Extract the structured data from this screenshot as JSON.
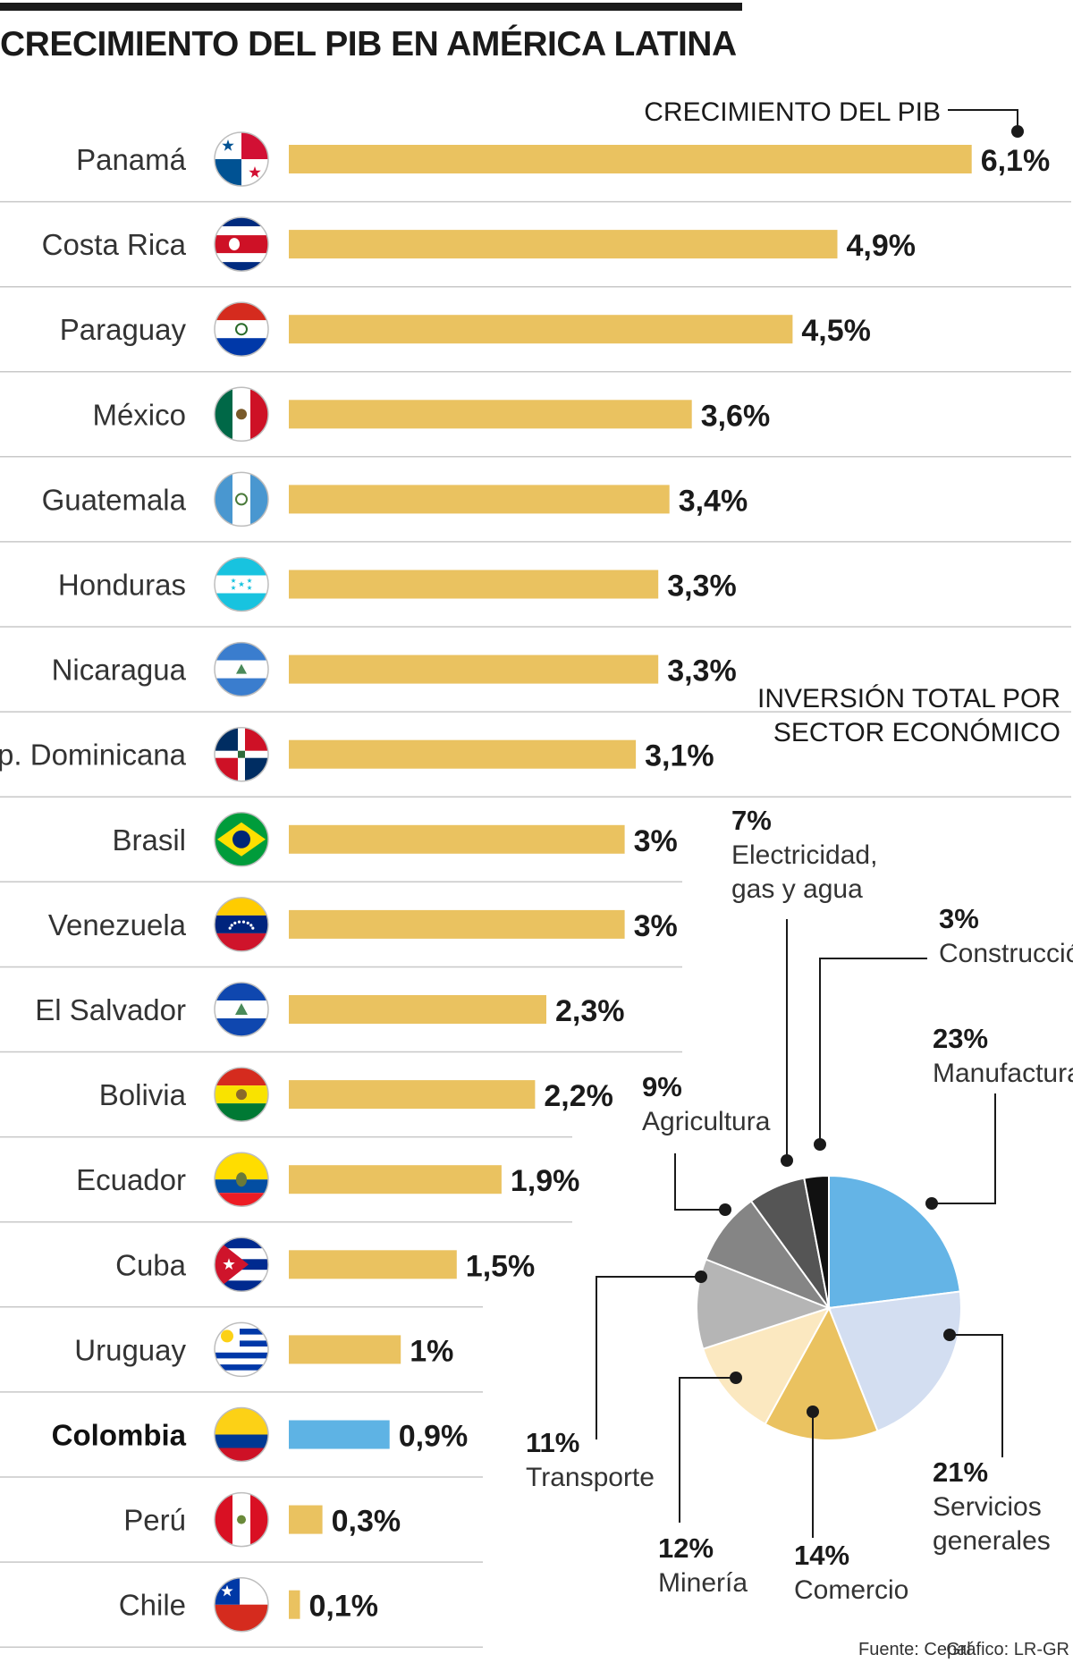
{
  "title": "CRECIMIENTO DEL PIB EN AMÉRICA LATINA",
  "legend_label": "CRECIMIENTO DEL PIB",
  "colors": {
    "bar": "#EAC260",
    "highlight": "#5EB3E4",
    "text": "#1a1a1a"
  },
  "chart_data": [
    {
      "type": "bar",
      "orientation": "horizontal",
      "title": "CRECIMIENTO DEL PIB EN AMÉRICA LATINA",
      "series_label": "CRECIMIENTO DEL PIB",
      "unit": "%",
      "highlight": "Colombia",
      "categories": [
        "Panamá",
        "Costa Rica",
        "Paraguay",
        "México",
        "Guatemala",
        "Honduras",
        "Nicaragua",
        "Rep. Dominicana",
        "Brasil",
        "Venezuela",
        "El Salvador",
        "Bolivia",
        "Ecuador",
        "Cuba",
        "Uruguay",
        "Colombia",
        "Perú",
        "Chile"
      ],
      "values": [
        6.1,
        4.9,
        4.5,
        3.6,
        3.4,
        3.3,
        3.3,
        3.1,
        3.0,
        3.0,
        2.3,
        2.2,
        1.9,
        1.5,
        1.0,
        0.9,
        0.3,
        0.1
      ],
      "labels": [
        "6,1%",
        "4,9%",
        "4,5%",
        "3,6%",
        "3,4%",
        "3,3%",
        "3,3%",
        "3,1%",
        "3%",
        "3%",
        "2,3%",
        "2,2%",
        "1,9%",
        "1,5%",
        "1%",
        "0,9%",
        "0,3%",
        "0,1%"
      ],
      "flags": [
        "panama-flag",
        "costa-rica-flag",
        "paraguay-flag",
        "mexico-flag",
        "guatemala-flag",
        "honduras-flag",
        "nicaragua-flag",
        "dominican-republic-flag",
        "brazil-flag",
        "venezuela-flag",
        "el-salvador-flag",
        "bolivia-flag",
        "ecuador-flag",
        "cuba-flag",
        "uruguay-flag",
        "colombia-flag",
        "peru-flag",
        "chile-flag"
      ]
    },
    {
      "type": "pie",
      "title_lines": [
        "INVERSIÓN TOTAL POR",
        "SECTOR ECONÓMICO"
      ],
      "slices": [
        {
          "label": "Manufactura",
          "label_lines": [
            "Manufactura"
          ],
          "value": 23,
          "pct": "23%",
          "color": "#64B4E6"
        },
        {
          "label": "Servicios generales",
          "label_lines": [
            "Servicios",
            "generales"
          ],
          "value": 21,
          "pct": "21%",
          "color": "#D3DEF1"
        },
        {
          "label": "Comercio",
          "label_lines": [
            "Comercio"
          ],
          "value": 14,
          "pct": "14%",
          "color": "#EAC260"
        },
        {
          "label": "Minería",
          "label_lines": [
            "Minería"
          ],
          "value": 12,
          "pct": "12%",
          "color": "#FBE8C0"
        },
        {
          "label": "Transporte",
          "label_lines": [
            "Transporte"
          ],
          "value": 11,
          "pct": "11%",
          "color": "#B5B5B5"
        },
        {
          "label": "Agricultura",
          "label_lines": [
            "Agricultura"
          ],
          "value": 9,
          "pct": "9%",
          "color": "#858585"
        },
        {
          "label": "Electricidad, gas y agua",
          "label_lines": [
            "Electricidad,",
            "gas y agua"
          ],
          "value": 7,
          "pct": "7%",
          "color": "#555555"
        },
        {
          "label": "Construcción",
          "label_lines": [
            "Construcción"
          ],
          "value": 3,
          "pct": "3%",
          "color": "#111111"
        }
      ]
    }
  ],
  "footer": {
    "source": "Fuente: Cepal",
    "credit": "Gráfico: LR-GR"
  }
}
